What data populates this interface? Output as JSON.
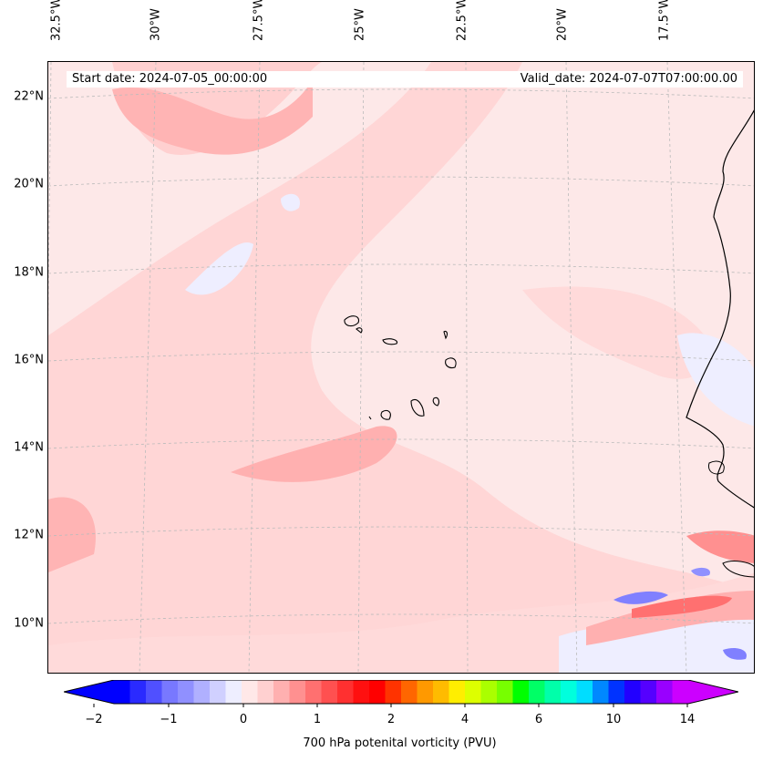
{
  "map": {
    "start_label": "Start date: 2024-07-05_00:00:00",
    "valid_label": "Valid_date: 2024-07-07T07:00:00.00",
    "lon_labels": [
      "32.5°W",
      "30°W",
      "27.5°W",
      "25°W",
      "22.5°W",
      "20°W",
      "17.5°W"
    ],
    "lat_labels": [
      "22°N",
      "20°N",
      "18°N",
      "16°N",
      "14°N",
      "12°N",
      "10°N"
    ],
    "extent": {
      "lon_west": -33.2,
      "lon_east": -14.5,
      "lat_south": 8.9,
      "lat_north": 22.8
    },
    "gridlines": "dashed light gray"
  },
  "colorbar": {
    "title": "700 hPa potenital vorticity (PVU)",
    "ticks": [
      "−2",
      "−1",
      "0",
      "1",
      "2",
      "4",
      "6",
      "10",
      "14"
    ],
    "extend": "both",
    "colors": [
      "#0000ff",
      "#2a2aff",
      "#5050ff",
      "#7878ff",
      "#9090ff",
      "#b0b0ff",
      "#d0d0ff",
      "#eeeeff",
      "#ffe8e8",
      "#ffd0d0",
      "#ffb0b0",
      "#ff9090",
      "#ff7070",
      "#ff5050",
      "#ff3030",
      "#ff1010",
      "#ff0000",
      "#ff3300",
      "#ff6600",
      "#ff9900",
      "#ffbb00",
      "#ffee00",
      "#ddff00",
      "#aaff00",
      "#77ff00",
      "#00ff00",
      "#00ff66",
      "#00ffaa",
      "#00ffdd",
      "#00ddff",
      "#0088ff",
      "#0033ff",
      "#2200ff",
      "#5500ff",
      "#9900ff",
      "#cc00ff"
    ],
    "under_color": "#0000ff",
    "over_color": "#cc00ff"
  }
}
